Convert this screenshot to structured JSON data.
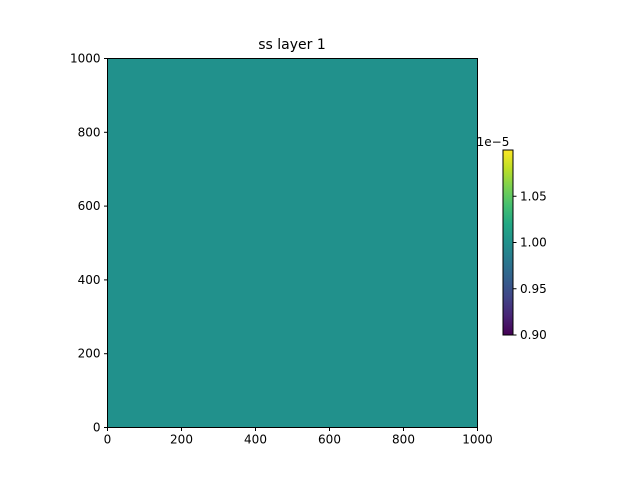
{
  "chart_data": {
    "type": "heatmap",
    "title": "ss layer 1",
    "xlabel": "",
    "ylabel": "",
    "xlim": [
      0,
      1000
    ],
    "ylim": [
      0,
      1000
    ],
    "xticks": [
      0,
      200,
      400,
      600,
      800,
      1000
    ],
    "yticks": [
      0,
      200,
      400,
      600,
      800,
      1000
    ],
    "grid": false,
    "values": [
      [
        1e-05
      ]
    ],
    "cell_color": "#21918c",
    "colorbar": {
      "colormap": "viridis",
      "min": 9e-06,
      "max": 1.1e-05,
      "offset_label": "1e−5",
      "ticks": [
        0.9,
        0.95,
        1.0,
        1.05
      ],
      "tick_labels": [
        "0.90",
        "0.95",
        "1.00",
        "1.05"
      ],
      "position": "right"
    }
  }
}
